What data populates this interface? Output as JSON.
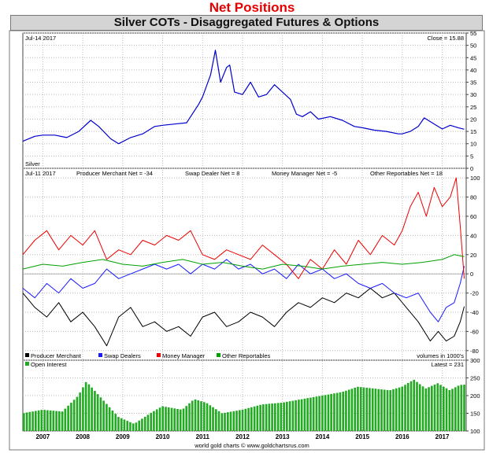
{
  "page": {
    "heading": "Net Positions",
    "title": "Silver COTs - Disaggregated Futures & Options",
    "footer": "world gold charts © www.goldchartsrus.com"
  },
  "colors": {
    "price": "#0000cc",
    "producer": "#000000",
    "swap": "#1a1aff",
    "money": "#ee0000",
    "other": "#00a000",
    "oi": "#22aa22",
    "heading": "#e60000"
  },
  "chart_data": [
    {
      "type": "line",
      "panel": "price",
      "top_left_label": "Jul-14  2017",
      "top_right_label": "Close = 15.88",
      "series_label": "Silver",
      "ylim": [
        0,
        55
      ],
      "yticks": [
        0,
        5,
        10,
        15,
        20,
        25,
        30,
        35,
        40,
        45,
        50,
        55
      ],
      "x_range": [
        2006.5,
        2017.6
      ],
      "series": [
        {
          "name": "Silver",
          "x": [
            2006.5,
            2006.8,
            2007.0,
            2007.3,
            2007.6,
            2007.9,
            2008.2,
            2008.4,
            2008.7,
            2008.9,
            2009.2,
            2009.5,
            2009.8,
            2010.0,
            2010.3,
            2010.6,
            2010.9,
            2011.0,
            2011.2,
            2011.32,
            2011.45,
            2011.6,
            2011.68,
            2011.8,
            2012.0,
            2012.2,
            2012.4,
            2012.6,
            2012.8,
            2013.0,
            2013.2,
            2013.35,
            2013.5,
            2013.7,
            2013.9,
            2014.2,
            2014.5,
            2014.8,
            2015.0,
            2015.3,
            2015.6,
            2015.9,
            2016.0,
            2016.2,
            2016.4,
            2016.55,
            2016.8,
            2017.0,
            2017.2,
            2017.4,
            2017.55
          ],
          "values": [
            11,
            13,
            13.5,
            13.5,
            12.5,
            15,
            19.5,
            17,
            12,
            10,
            12.5,
            14,
            17,
            17.5,
            18,
            18.5,
            26,
            29,
            38,
            48,
            35,
            41,
            42,
            31,
            30,
            35,
            29,
            30,
            34,
            31,
            28,
            22,
            21,
            23,
            20,
            21,
            19.5,
            17,
            16.5,
            15.5,
            15,
            14,
            14,
            15,
            17,
            20.5,
            18,
            16,
            17.5,
            16.5,
            15.88
          ]
        }
      ]
    },
    {
      "type": "line",
      "panel": "cot",
      "top_left_label": "Jul-11  2017",
      "net_labels": [
        "Producer Merchant Net = -34",
        "Swap Dealer Net = 8",
        "Money Manager Net = -5",
        "Other Reportables Net = 18"
      ],
      "ylim": [
        -90,
        110
      ],
      "yticks": [
        -80,
        -60,
        -40,
        -20,
        0,
        20,
        40,
        60,
        80,
        100
      ],
      "units_note": "volumes in 1000's",
      "legend": [
        "Producer Merchant",
        "Swap Dealers",
        "Money Manager",
        "Other Reportables"
      ],
      "x_range": [
        2006.5,
        2017.6
      ],
      "series": [
        {
          "name": "Producer Merchant",
          "x": [
            2006.5,
            2006.8,
            2007.1,
            2007.4,
            2007.7,
            2008.0,
            2008.3,
            2008.6,
            2008.9,
            2009.2,
            2009.5,
            2009.8,
            2010.1,
            2010.4,
            2010.7,
            2011.0,
            2011.3,
            2011.6,
            2011.9,
            2012.2,
            2012.5,
            2012.8,
            2013.1,
            2013.4,
            2013.7,
            2014.0,
            2014.3,
            2014.6,
            2014.9,
            2015.2,
            2015.5,
            2015.8,
            2016.1,
            2016.4,
            2016.7,
            2016.9,
            2017.1,
            2017.3,
            2017.45,
            2017.55
          ],
          "values": [
            -20,
            -35,
            -45,
            -30,
            -50,
            -40,
            -55,
            -75,
            -45,
            -35,
            -55,
            -50,
            -60,
            -55,
            -65,
            -45,
            -40,
            -55,
            -50,
            -40,
            -45,
            -55,
            -40,
            -30,
            -35,
            -25,
            -30,
            -20,
            -25,
            -15,
            -25,
            -20,
            -35,
            -50,
            -70,
            -60,
            -70,
            -65,
            -50,
            -34
          ]
        },
        {
          "name": "Swap Dealers",
          "x": [
            2006.5,
            2006.8,
            2007.1,
            2007.4,
            2007.7,
            2008.0,
            2008.3,
            2008.6,
            2008.9,
            2009.2,
            2009.5,
            2009.8,
            2010.1,
            2010.4,
            2010.7,
            2011.0,
            2011.3,
            2011.6,
            2011.9,
            2012.2,
            2012.5,
            2012.8,
            2013.1,
            2013.4,
            2013.7,
            2014.0,
            2014.3,
            2014.6,
            2014.9,
            2015.2,
            2015.5,
            2015.8,
            2016.1,
            2016.4,
            2016.7,
            2016.9,
            2017.1,
            2017.3,
            2017.45,
            2017.55
          ],
          "values": [
            -15,
            -25,
            -10,
            -20,
            -5,
            -15,
            -10,
            5,
            -5,
            0,
            5,
            10,
            5,
            10,
            0,
            10,
            5,
            15,
            5,
            10,
            0,
            5,
            -5,
            10,
            0,
            5,
            -5,
            0,
            -10,
            -15,
            -10,
            -20,
            -25,
            -20,
            -40,
            -50,
            -35,
            -30,
            -10,
            8
          ]
        },
        {
          "name": "Money Manager",
          "x": [
            2006.5,
            2006.8,
            2007.1,
            2007.4,
            2007.7,
            2008.0,
            2008.3,
            2008.6,
            2008.9,
            2009.2,
            2009.5,
            2009.8,
            2010.1,
            2010.4,
            2010.7,
            2011.0,
            2011.3,
            2011.6,
            2011.9,
            2012.2,
            2012.5,
            2012.8,
            2013.1,
            2013.4,
            2013.7,
            2014.0,
            2014.3,
            2014.6,
            2014.9,
            2015.2,
            2015.5,
            2015.8,
            2016.0,
            2016.2,
            2016.4,
            2016.6,
            2016.8,
            2017.0,
            2017.2,
            2017.35,
            2017.45,
            2017.55
          ],
          "values": [
            20,
            35,
            45,
            25,
            40,
            30,
            45,
            15,
            25,
            20,
            35,
            30,
            40,
            35,
            45,
            20,
            15,
            25,
            20,
            15,
            30,
            20,
            10,
            -5,
            15,
            5,
            25,
            10,
            35,
            20,
            40,
            30,
            45,
            70,
            85,
            60,
            90,
            70,
            80,
            100,
            50,
            -5
          ]
        },
        {
          "name": "Other Reportables",
          "x": [
            2006.5,
            2007.0,
            2007.5,
            2008.0,
            2008.5,
            2009.0,
            2009.5,
            2010.0,
            2010.5,
            2011.0,
            2011.5,
            2012.0,
            2012.5,
            2013.0,
            2013.5,
            2014.0,
            2014.5,
            2015.0,
            2015.5,
            2016.0,
            2016.5,
            2017.0,
            2017.3,
            2017.55
          ],
          "values": [
            5,
            10,
            8,
            12,
            15,
            10,
            8,
            12,
            15,
            10,
            12,
            8,
            5,
            10,
            8,
            5,
            8,
            10,
            12,
            10,
            12,
            15,
            20,
            18
          ]
        }
      ]
    },
    {
      "type": "bar",
      "panel": "open_interest",
      "legend": [
        "Open Interest"
      ],
      "top_right_label": "Latest = 231",
      "ylim": [
        100,
        300
      ],
      "yticks": [
        100,
        150,
        200,
        250,
        300
      ],
      "x_range": [
        2006.5,
        2017.6
      ],
      "x_tick_labels": [
        "2007",
        "2008",
        "2009",
        "2010",
        "2011",
        "2012",
        "2013",
        "2014",
        "2015",
        "2016",
        "2017"
      ],
      "x_tick_values": [
        2007,
        2008,
        2009,
        2010,
        2011,
        2012,
        2013,
        2014,
        2015,
        2016,
        2017
      ],
      "x": [
        2006.5,
        2007.0,
        2007.5,
        2007.9,
        2008.1,
        2008.5,
        2008.9,
        2009.3,
        2009.7,
        2010.0,
        2010.5,
        2010.8,
        2011.1,
        2011.5,
        2012.0,
        2012.5,
        2013.0,
        2013.5,
        2014.0,
        2014.5,
        2014.9,
        2015.3,
        2015.7,
        2016.0,
        2016.3,
        2016.6,
        2016.9,
        2017.2,
        2017.45,
        2017.55
      ],
      "values": [
        150,
        160,
        155,
        200,
        240,
        190,
        140,
        120,
        150,
        170,
        160,
        190,
        180,
        150,
        160,
        175,
        180,
        190,
        200,
        210,
        225,
        220,
        215,
        225,
        245,
        220,
        235,
        215,
        230,
        231
      ]
    }
  ]
}
